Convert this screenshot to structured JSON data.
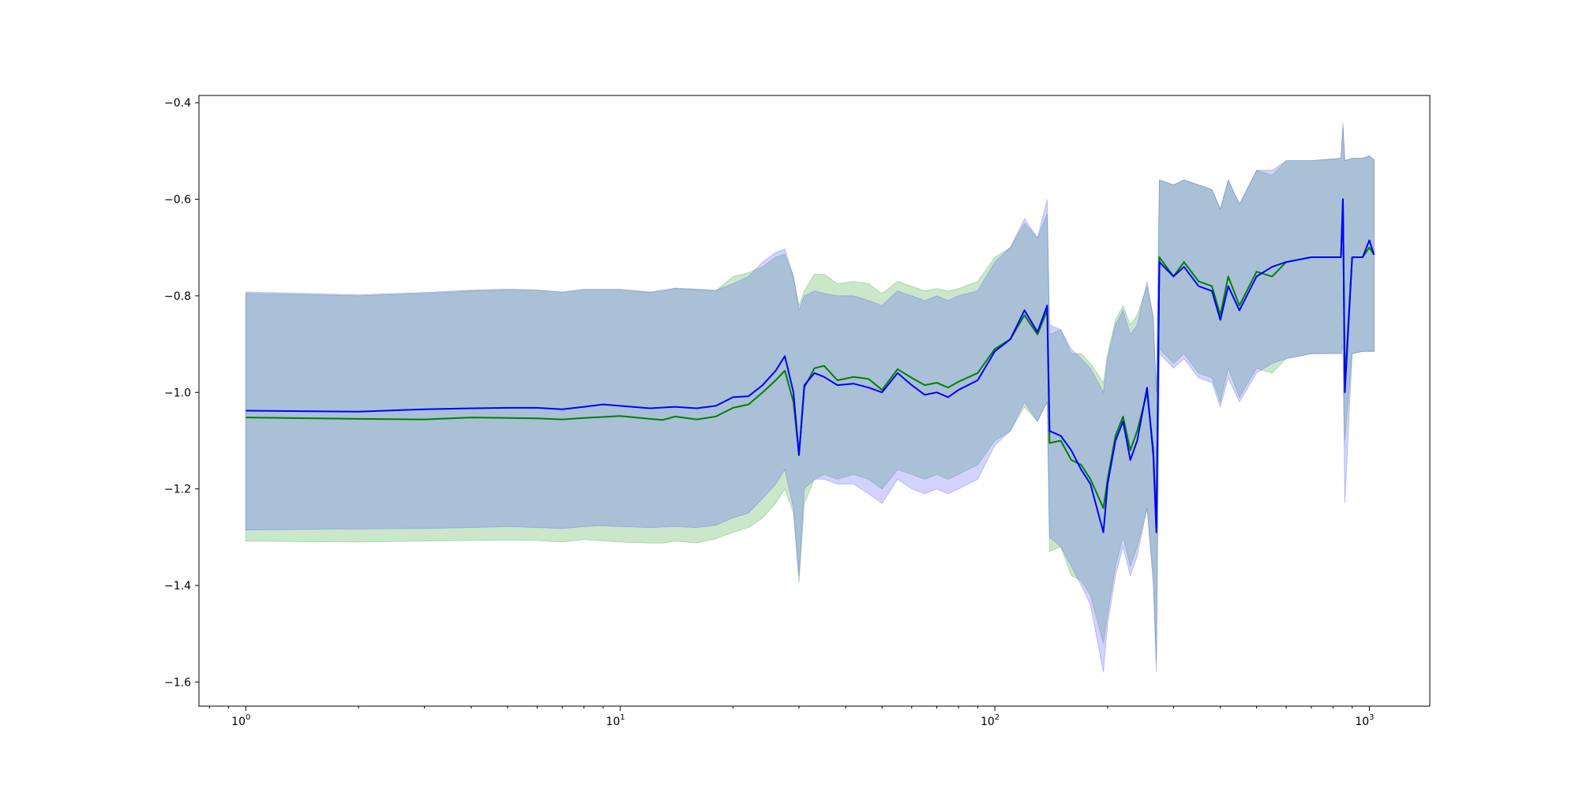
{
  "chart_data": {
    "type": "line",
    "title": "",
    "xlabel": "",
    "ylabel": "",
    "x_scale": "log",
    "xlim": [
      0.75,
      1450
    ],
    "ylim": [
      -1.65,
      -0.385
    ],
    "grid": false,
    "x_major_ticks": [
      1,
      10,
      100,
      1000
    ],
    "x_tick_labels": [
      "10^0",
      "10^1",
      "10^2",
      "10^3"
    ],
    "y_ticks": [
      -1.6,
      -1.4,
      -1.2,
      -1.0,
      -0.8,
      -0.6,
      -0.4
    ],
    "y_tick_labels": [
      "−1.6",
      "−1.4",
      "−1.2",
      "−1.0",
      "−0.8",
      "−0.6",
      "−0.4"
    ],
    "series": [
      {
        "color": "#008000",
        "band_color": "#2ca02c",
        "points": [
          [
            1,
            -1.052,
            -0.795,
            -1.308
          ],
          [
            2,
            -1.055,
            -0.8,
            -1.31
          ],
          [
            3,
            -1.056,
            -0.795,
            -1.308
          ],
          [
            4,
            -1.052,
            -0.79,
            -1.307
          ],
          [
            5,
            -1.053,
            -0.788,
            -1.306
          ],
          [
            6,
            -1.054,
            -0.788,
            -1.307
          ],
          [
            7,
            -1.056,
            -0.793,
            -1.31
          ],
          [
            8,
            -1.053,
            -0.788,
            -1.305
          ],
          [
            10,
            -1.049,
            -0.788,
            -1.31
          ],
          [
            12,
            -1.055,
            -0.793,
            -1.312
          ],
          [
            13,
            -1.057,
            -0.79,
            -1.312
          ],
          [
            14,
            -1.05,
            -0.785,
            -1.308
          ],
          [
            16,
            -1.056,
            -0.787,
            -1.312
          ],
          [
            18,
            -1.05,
            -0.79,
            -1.303
          ],
          [
            20,
            -1.032,
            -0.76,
            -1.29
          ],
          [
            22,
            -1.025,
            -0.752,
            -1.28
          ],
          [
            24,
            -1.0,
            -0.74,
            -1.26
          ],
          [
            26,
            -0.975,
            -0.72,
            -1.23
          ],
          [
            27.5,
            -0.955,
            -0.714,
            -1.2
          ],
          [
            29,
            -1.02,
            -0.76,
            -1.25
          ],
          [
            30,
            -1.13,
            -0.82,
            -1.395
          ],
          [
            31,
            -0.99,
            -0.79,
            -1.23
          ],
          [
            33,
            -0.95,
            -0.755,
            -1.18
          ],
          [
            35,
            -0.945,
            -0.755,
            -1.17
          ],
          [
            38,
            -0.975,
            -0.775,
            -1.18
          ],
          [
            42,
            -0.968,
            -0.77,
            -1.17
          ],
          [
            46,
            -0.972,
            -0.775,
            -1.18
          ],
          [
            50,
            -0.995,
            -0.795,
            -1.2
          ],
          [
            55,
            -0.952,
            -0.77,
            -1.16
          ],
          [
            60,
            -0.97,
            -0.78,
            -1.17
          ],
          [
            65,
            -0.985,
            -0.79,
            -1.18
          ],
          [
            70,
            -0.98,
            -0.785,
            -1.17
          ],
          [
            75,
            -0.99,
            -0.79,
            -1.18
          ],
          [
            80,
            -0.978,
            -0.785,
            -1.17
          ],
          [
            90,
            -0.96,
            -0.77,
            -1.15
          ],
          [
            100,
            -0.91,
            -0.72,
            -1.1
          ],
          [
            110,
            -0.89,
            -0.7,
            -1.08
          ],
          [
            120,
            -0.84,
            -0.65,
            -1.03
          ],
          [
            130,
            -0.88,
            -0.68,
            -1.06
          ],
          [
            138,
            -0.83,
            -0.63,
            -1.02
          ],
          [
            140,
            -1.105,
            -0.88,
            -1.33
          ],
          [
            150,
            -1.1,
            -0.87,
            -1.32
          ],
          [
            160,
            -1.14,
            -0.92,
            -1.38
          ],
          [
            170,
            -1.15,
            -0.92,
            -1.39
          ],
          [
            180,
            -1.18,
            -0.94,
            -1.42
          ],
          [
            195,
            -1.24,
            -0.98,
            -1.52
          ],
          [
            200,
            -1.18,
            -0.92,
            -1.46
          ],
          [
            210,
            -1.09,
            -0.85,
            -1.36
          ],
          [
            220,
            -1.05,
            -0.82,
            -1.3
          ],
          [
            230,
            -1.12,
            -0.86,
            -1.36
          ],
          [
            240,
            -1.08,
            -0.84,
            -1.32
          ],
          [
            255,
            -1.0,
            -0.78,
            -1.24
          ],
          [
            265,
            -1.12,
            -0.84,
            -1.38
          ],
          [
            270,
            -1.28,
            -1.0,
            -1.56
          ],
          [
            275,
            -0.72,
            -0.56,
            -0.91
          ],
          [
            300,
            -0.76,
            -0.57,
            -0.94
          ],
          [
            320,
            -0.73,
            -0.56,
            -0.92
          ],
          [
            350,
            -0.77,
            -0.57,
            -0.96
          ],
          [
            380,
            -0.78,
            -0.58,
            -0.97
          ],
          [
            400,
            -0.84,
            -0.62,
            -1.02
          ],
          [
            420,
            -0.76,
            -0.56,
            -0.95
          ],
          [
            450,
            -0.82,
            -0.61,
            -1.01
          ],
          [
            500,
            -0.75,
            -0.54,
            -0.95
          ],
          [
            550,
            -0.76,
            -0.55,
            -0.96
          ],
          [
            600,
            -0.73,
            -0.52,
            -0.93
          ],
          [
            700,
            -0.72,
            -0.52,
            -0.92
          ],
          [
            840,
            -0.72,
            -0.515,
            -0.918
          ],
          [
            850,
            -0.6,
            -0.45,
            -0.9
          ],
          [
            860,
            -0.98,
            -0.52,
            -1.1
          ],
          [
            900,
            -0.72,
            -0.515,
            -0.92
          ],
          [
            960,
            -0.72,
            -0.515,
            -0.915
          ],
          [
            1000,
            -0.7,
            -0.51,
            -0.915
          ],
          [
            1030,
            -0.715,
            -0.518,
            -0.915
          ]
        ]
      },
      {
        "color": "#0000ff",
        "band_color": "#4c4cff",
        "points": [
          [
            1,
            -1.038,
            -0.792,
            -1.285
          ],
          [
            2,
            -1.04,
            -0.798,
            -1.283
          ],
          [
            3,
            -1.035,
            -0.793,
            -1.282
          ],
          [
            4,
            -1.033,
            -0.788,
            -1.28
          ],
          [
            5,
            -1.032,
            -0.786,
            -1.278
          ],
          [
            6,
            -1.032,
            -0.788,
            -1.28
          ],
          [
            7,
            -1.035,
            -0.792,
            -1.282
          ],
          [
            8,
            -1.03,
            -0.786,
            -1.278
          ],
          [
            9,
            -1.025,
            -0.786,
            -1.276
          ],
          [
            10,
            -1.028,
            -0.786,
            -1.278
          ],
          [
            12,
            -1.033,
            -0.792,
            -1.28
          ],
          [
            14,
            -1.03,
            -0.784,
            -1.278
          ],
          [
            16,
            -1.033,
            -0.786,
            -1.28
          ],
          [
            18,
            -1.028,
            -0.788,
            -1.275
          ],
          [
            20,
            -1.01,
            -0.775,
            -1.26
          ],
          [
            22,
            -1.008,
            -0.76,
            -1.25
          ],
          [
            24,
            -0.985,
            -0.73,
            -1.22
          ],
          [
            26,
            -0.955,
            -0.71,
            -1.19
          ],
          [
            27.5,
            -0.925,
            -0.703,
            -1.16
          ],
          [
            29,
            -1.0,
            -0.76,
            -1.24
          ],
          [
            30,
            -1.13,
            -0.83,
            -1.38
          ],
          [
            31,
            -0.985,
            -0.8,
            -1.2
          ],
          [
            33,
            -0.96,
            -0.79,
            -1.18
          ],
          [
            35,
            -0.968,
            -0.795,
            -1.18
          ],
          [
            38,
            -0.985,
            -0.8,
            -1.19
          ],
          [
            42,
            -0.982,
            -0.8,
            -1.19
          ],
          [
            46,
            -0.99,
            -0.81,
            -1.21
          ],
          [
            50,
            -1.0,
            -0.82,
            -1.23
          ],
          [
            55,
            -0.96,
            -0.79,
            -1.18
          ],
          [
            60,
            -0.985,
            -0.8,
            -1.2
          ],
          [
            65,
            -1.005,
            -0.81,
            -1.21
          ],
          [
            70,
            -1.0,
            -0.8,
            -1.2
          ],
          [
            75,
            -1.01,
            -0.81,
            -1.21
          ],
          [
            80,
            -0.995,
            -0.8,
            -1.2
          ],
          [
            90,
            -0.975,
            -0.79,
            -1.18
          ],
          [
            100,
            -0.915,
            -0.73,
            -1.11
          ],
          [
            110,
            -0.89,
            -0.7,
            -1.08
          ],
          [
            120,
            -0.83,
            -0.64,
            -1.02
          ],
          [
            130,
            -0.875,
            -0.68,
            -1.06
          ],
          [
            138,
            -0.82,
            -0.6,
            -1.02
          ],
          [
            140,
            -1.08,
            -0.86,
            -1.3
          ],
          [
            150,
            -1.09,
            -0.87,
            -1.32
          ],
          [
            160,
            -1.12,
            -0.91,
            -1.36
          ],
          [
            170,
            -1.16,
            -0.93,
            -1.4
          ],
          [
            180,
            -1.19,
            -0.95,
            -1.44
          ],
          [
            195,
            -1.29,
            -1.0,
            -1.58
          ],
          [
            200,
            -1.19,
            -0.93,
            -1.48
          ],
          [
            210,
            -1.1,
            -0.86,
            -1.38
          ],
          [
            220,
            -1.06,
            -0.83,
            -1.32
          ],
          [
            230,
            -1.14,
            -0.88,
            -1.38
          ],
          [
            240,
            -1.1,
            -0.86,
            -1.34
          ],
          [
            255,
            -0.99,
            -0.77,
            -1.24
          ],
          [
            265,
            -1.13,
            -0.85,
            -1.4
          ],
          [
            270,
            -1.29,
            -1.0,
            -1.58
          ],
          [
            275,
            -0.73,
            -0.56,
            -0.92
          ],
          [
            300,
            -0.76,
            -0.57,
            -0.95
          ],
          [
            320,
            -0.74,
            -0.56,
            -0.93
          ],
          [
            350,
            -0.78,
            -0.57,
            -0.97
          ],
          [
            380,
            -0.79,
            -0.58,
            -0.98
          ],
          [
            400,
            -0.85,
            -0.62,
            -1.03
          ],
          [
            420,
            -0.78,
            -0.56,
            -0.97
          ],
          [
            450,
            -0.83,
            -0.61,
            -1.02
          ],
          [
            500,
            -0.76,
            -0.54,
            -0.96
          ],
          [
            550,
            -0.74,
            -0.54,
            -0.94
          ],
          [
            600,
            -0.73,
            -0.52,
            -0.93
          ],
          [
            700,
            -0.72,
            -0.52,
            -0.92
          ],
          [
            840,
            -0.72,
            -0.515,
            -0.92
          ],
          [
            850,
            -0.6,
            -0.44,
            -0.92
          ],
          [
            860,
            -1.0,
            -0.52,
            -1.23
          ],
          [
            900,
            -0.72,
            -0.515,
            -0.92
          ],
          [
            960,
            -0.72,
            -0.515,
            -0.915
          ],
          [
            1000,
            -0.685,
            -0.51,
            -0.915
          ],
          [
            1030,
            -0.715,
            -0.518,
            -0.915
          ]
        ]
      }
    ]
  }
}
